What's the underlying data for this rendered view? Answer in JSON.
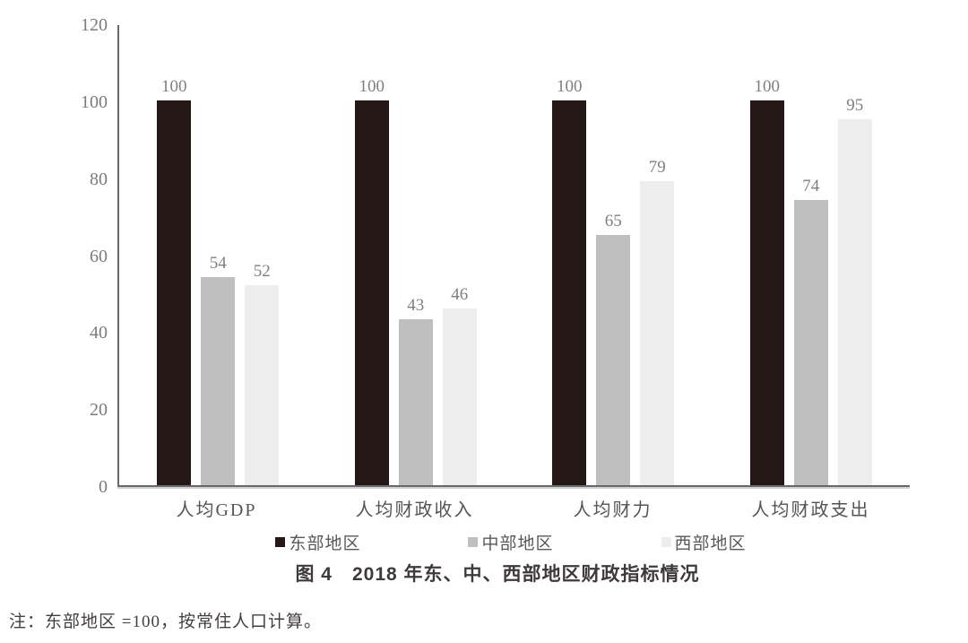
{
  "chart_data": {
    "type": "bar",
    "title": "图 4　2018 年东、中、西部地区财政指标情况",
    "categories": [
      "人均GDP",
      "人均财政收入",
      "人均财力",
      "人均财政支出"
    ],
    "series": [
      {
        "name": "东部地区",
        "color": "#231815",
        "values": [
          100,
          100,
          100,
          100
        ]
      },
      {
        "name": "中部地区",
        "color": "#bfbfbf",
        "values": [
          54,
          43,
          65,
          74
        ]
      },
      {
        "name": "西部地区",
        "color": "#ededee",
        "values": [
          52,
          46,
          79,
          95
        ]
      }
    ],
    "xlabel": "",
    "ylabel": "",
    "ylim": [
      0,
      120
    ],
    "yticks": [
      0,
      20,
      40,
      60,
      80,
      100,
      120
    ],
    "grid": false,
    "value_labels": true,
    "legend_position": "bottom",
    "axis_color": "#686868"
  },
  "caption": "图 4　2018 年东、中、西部地区财政指标情况",
  "note": "注：东部地区 =100，按常住人口计算。"
}
